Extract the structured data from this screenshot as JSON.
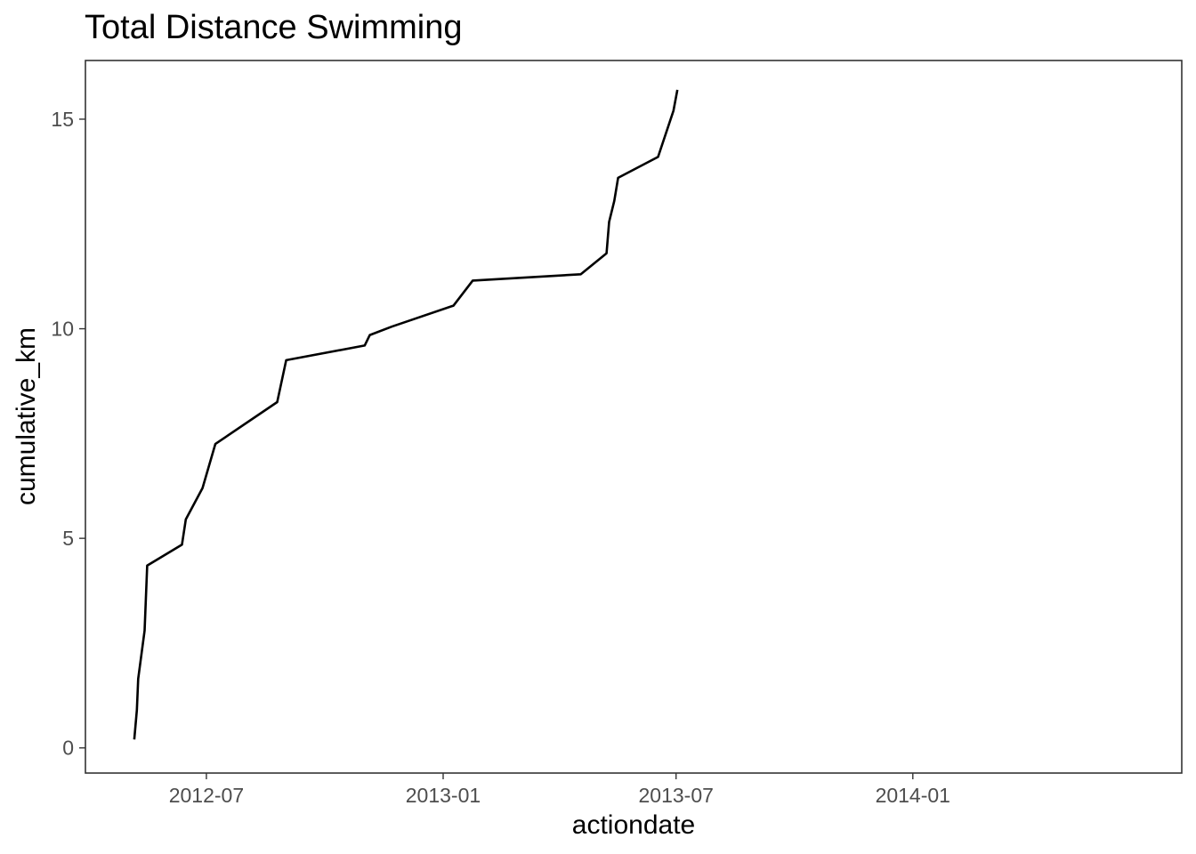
{
  "chart_data": {
    "type": "line",
    "title": "Total Distance Swimming",
    "xlabel": "actiondate",
    "ylabel": "cumulative_km",
    "xlim": [
      "2012-03-29",
      "2014-07-29"
    ],
    "ylim": [
      -0.6,
      16.4
    ],
    "x_ticks": [
      {
        "value": "2012-07-01",
        "label": "2012-07"
      },
      {
        "value": "2013-01-01",
        "label": "2013-01"
      },
      {
        "value": "2013-07-01",
        "label": "2013-07"
      },
      {
        "value": "2014-01-01",
        "label": "2014-01"
      }
    ],
    "y_ticks": [
      {
        "value": 0,
        "label": "0"
      },
      {
        "value": 5,
        "label": "5"
      },
      {
        "value": 10,
        "label": "10"
      },
      {
        "value": 15,
        "label": "15"
      }
    ],
    "grid": false,
    "legend": "none",
    "line_color": "#000000",
    "x": [
      "2012-05-06",
      "2012-05-08",
      "2012-05-09",
      "2012-05-14",
      "2012-05-16",
      "2012-06-12",
      "2012-06-15",
      "2012-06-28",
      "2012-07-08",
      "2012-08-25",
      "2012-09-01",
      "2012-11-01",
      "2012-11-05",
      "2012-11-22",
      "2013-01-09",
      "2013-01-24",
      "2013-04-18",
      "2013-05-08",
      "2013-05-10",
      "2013-05-14",
      "2013-05-17",
      "2013-06-17",
      "2013-06-29",
      "2013-07-02"
    ],
    "y": [
      0.2,
      0.9,
      1.65,
      2.8,
      4.35,
      4.85,
      5.45,
      6.2,
      7.25,
      8.25,
      9.25,
      9.6,
      9.85,
      10.05,
      10.55,
      11.15,
      11.3,
      11.8,
      12.55,
      13.05,
      13.6,
      14.1,
      15.2,
      15.7
    ]
  }
}
